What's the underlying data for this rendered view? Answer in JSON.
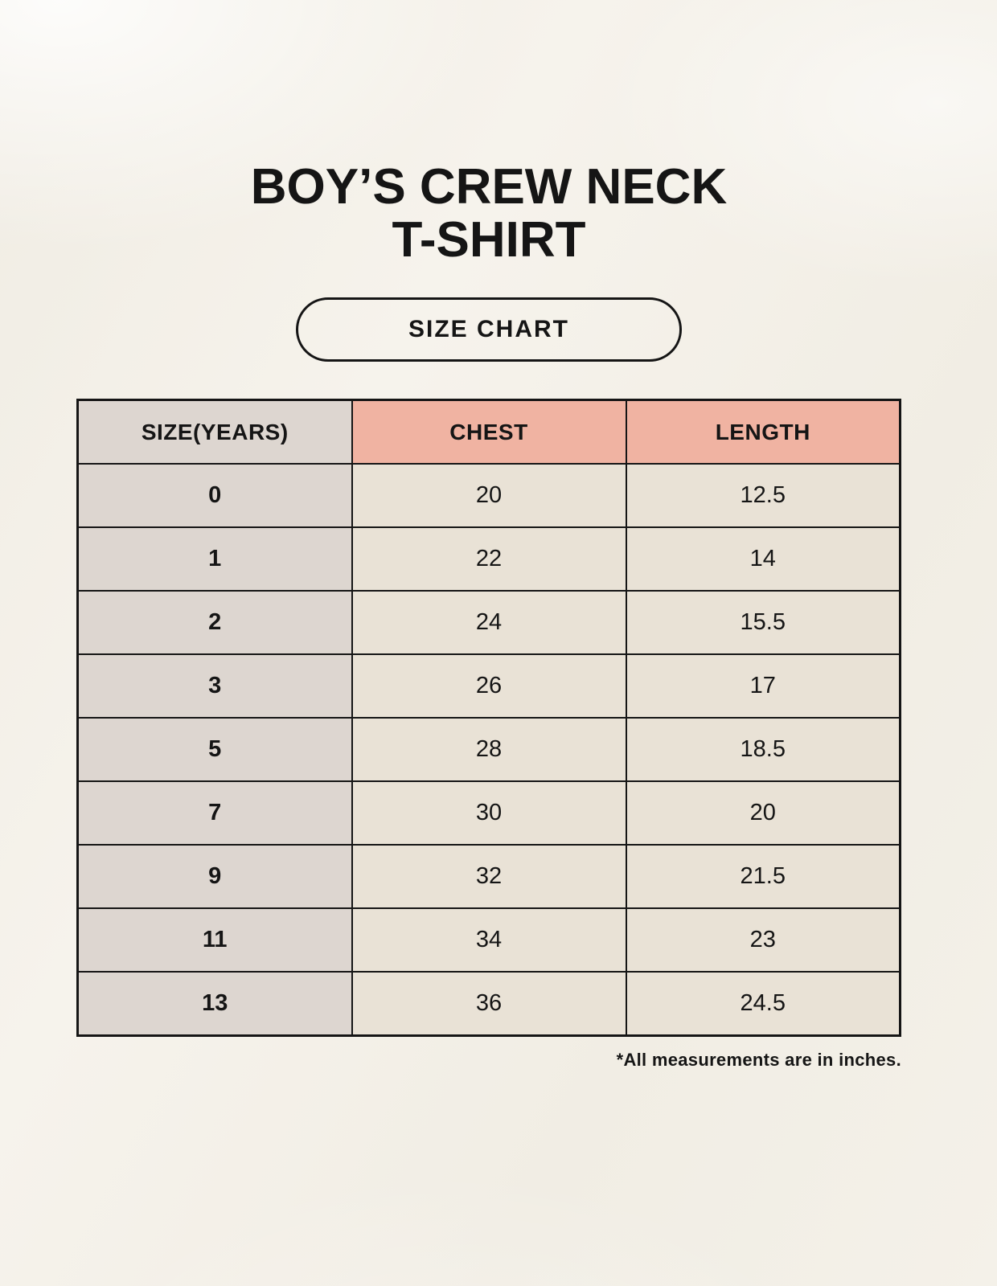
{
  "header": {
    "title_line1": "BOY’S CREW NECK",
    "title_line2": "T-SHIRT",
    "badge_label": "SIZE CHART"
  },
  "chart_data": {
    "type": "table",
    "title": "BOY’S CREW NECK T-SHIRT",
    "subtitle": "SIZE CHART",
    "columns": [
      "SIZE(YEARS)",
      "CHEST",
      "LENGTH"
    ],
    "rows": [
      [
        "0",
        "20",
        "12.5"
      ],
      [
        "1",
        "22",
        "14"
      ],
      [
        "2",
        "24",
        "15.5"
      ],
      [
        "3",
        "26",
        "17"
      ],
      [
        "5",
        "28",
        "18.5"
      ],
      [
        "7",
        "30",
        "20"
      ],
      [
        "9",
        "32",
        "21.5"
      ],
      [
        "11",
        "34",
        "23"
      ],
      [
        "13",
        "36",
        "24.5"
      ]
    ],
    "note": "*All measurements are in inches.",
    "units": "inches"
  },
  "colors": {
    "background": "#f3efe7",
    "header_size_bg": "#ddd6d0",
    "header_measure_bg": "#f0b3a2",
    "size_col_bg": "#ddd6d0",
    "data_cell_bg": "#e9e2d6",
    "border": "#151515",
    "text": "#151515"
  }
}
